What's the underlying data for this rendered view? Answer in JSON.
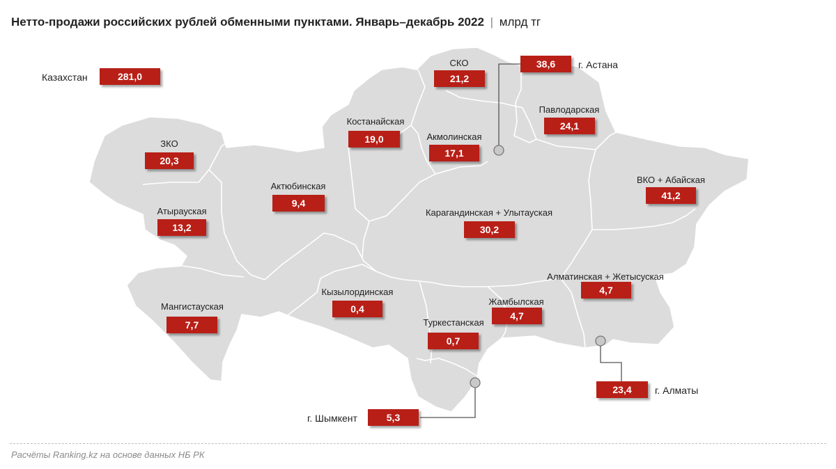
{
  "title": {
    "main": "Нетто-продажи российских рублей обменными пунктами. Январь–декабрь 2022",
    "separator": "|",
    "unit": "млрд тг"
  },
  "total": {
    "label": "Казахстан",
    "value": "281,0"
  },
  "regions": {
    "zko": {
      "label": "ЗКО",
      "value": "20,3"
    },
    "atyrau": {
      "label": "Атырауская",
      "value": "13,2"
    },
    "mangistau": {
      "label": "Мангистауская",
      "value": "7,7"
    },
    "aktobe": {
      "label": "Актюбинская",
      "value": "9,4"
    },
    "kostanay": {
      "label": "Костанайская",
      "value": "19,0"
    },
    "sko": {
      "label": "СКО",
      "value": "21,2"
    },
    "akmola": {
      "label": "Акмолинская",
      "value": "17,1"
    },
    "pavlodar": {
      "label": "Павлодарская",
      "value": "24,1"
    },
    "vko": {
      "label": "ВКО + Абайская",
      "value": "41,2"
    },
    "karaganda": {
      "label": "Карагандинская + Улытауская",
      "value": "30,2"
    },
    "kyzylorda": {
      "label": "Кызылординская",
      "value": "0,4"
    },
    "turkestan": {
      "label": "Туркестанская",
      "value": "0,7"
    },
    "zhambyl": {
      "label": "Жамбылская",
      "value": "4,7"
    },
    "almaty_reg": {
      "label": "Алматинская + Жетысуская",
      "value": "4,7"
    }
  },
  "cities": {
    "astana": {
      "label": "г. Астана",
      "value": "38,6"
    },
    "almaty": {
      "label": "г. Алматы",
      "value": "23,4"
    },
    "shymkent": {
      "label": "г. Шымкент",
      "value": "5,3"
    }
  },
  "source": "Расчёты Ranking.kz на основе данных НБ РК",
  "colors": {
    "map_fill": "#dcdcdc",
    "border": "#ffffff",
    "value_box": "#b81f17",
    "leader": "#555555"
  }
}
